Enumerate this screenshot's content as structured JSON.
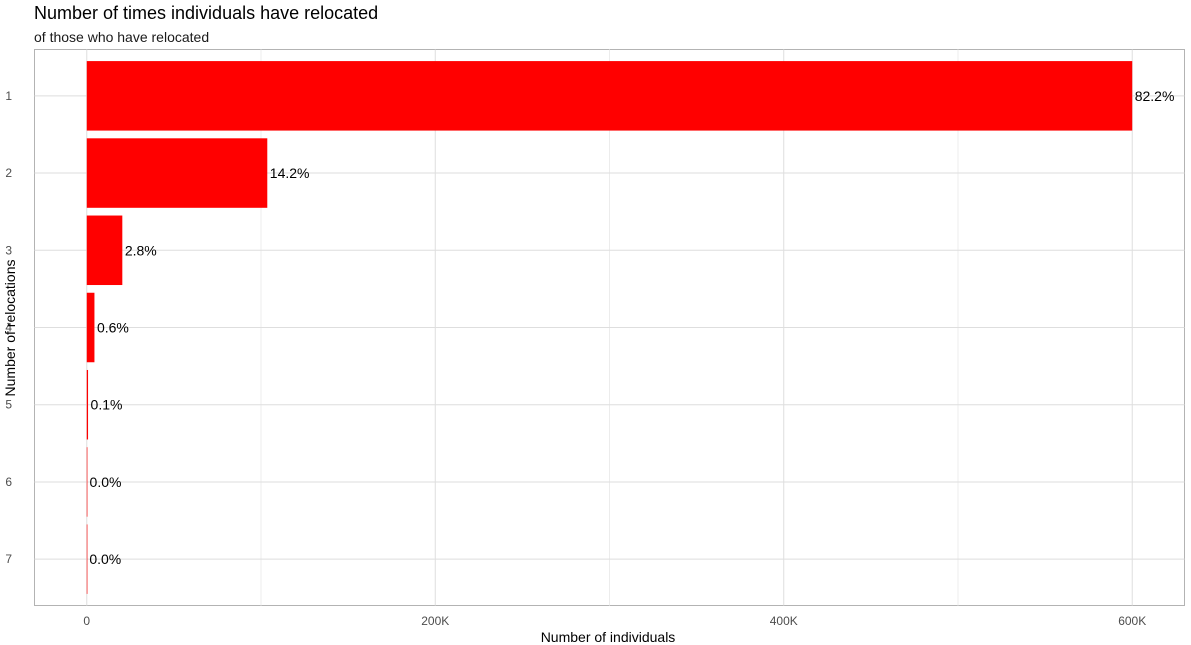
{
  "chart_data": {
    "type": "bar",
    "orientation": "horizontal",
    "title": "Number of times individuals have relocated",
    "subtitle": "of those who have relocated",
    "xlabel": "Number of individuals",
    "ylabel": "Number of relocations",
    "categories": [
      "1",
      "2",
      "3",
      "4",
      "5",
      "6",
      "7"
    ],
    "values": [
      600000,
      103600,
      20400,
      4400,
      730,
      150,
      30
    ],
    "labels": [
      "82.2%",
      "14.2%",
      "2.8%",
      "0.6%",
      "0.1%",
      "0.0%",
      "0.0%"
    ],
    "xlim": [
      -30000,
      630000
    ],
    "xticks": [
      0,
      200000,
      400000,
      600000
    ],
    "xtick_labels": [
      "0",
      "200K",
      "400K",
      "600K"
    ],
    "bar_color": "#FF0000",
    "grid": true,
    "legend": "none"
  }
}
